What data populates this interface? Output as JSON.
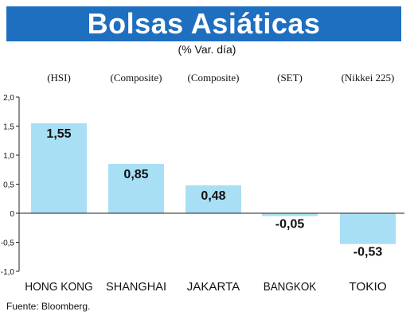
{
  "header": {
    "title": "Bolsas Asiáticas",
    "subtitle": "(% Var. día)"
  },
  "chart_data": {
    "type": "bar",
    "categories": [
      "HONG KONG",
      "SHANGHAI",
      "JAKARTA",
      "BANGKOK",
      "TOKIO"
    ],
    "index_labels": [
      "(HSI)",
      "(Composite)",
      "(Composite)",
      "(SET)",
      "(Nikkei 225)"
    ],
    "values": [
      1.55,
      0.85,
      0.48,
      -0.05,
      -0.53
    ],
    "value_labels": [
      "1,55",
      "0,85",
      "0,48",
      "-0,05",
      "-0,53"
    ],
    "yticks": [
      2.0,
      1.5,
      1.0,
      0.5,
      0,
      -0.5,
      -1.0
    ],
    "ytick_labels": [
      "2,0",
      "1,5",
      "1,0",
      "0,5",
      "0",
      "-0,5",
      "-1,0"
    ],
    "ylim": [
      -1.0,
      2.0
    ],
    "bar_color": "#a8dff5",
    "legend": "none",
    "grid": false
  },
  "source": "Fuente: Bloomberg."
}
